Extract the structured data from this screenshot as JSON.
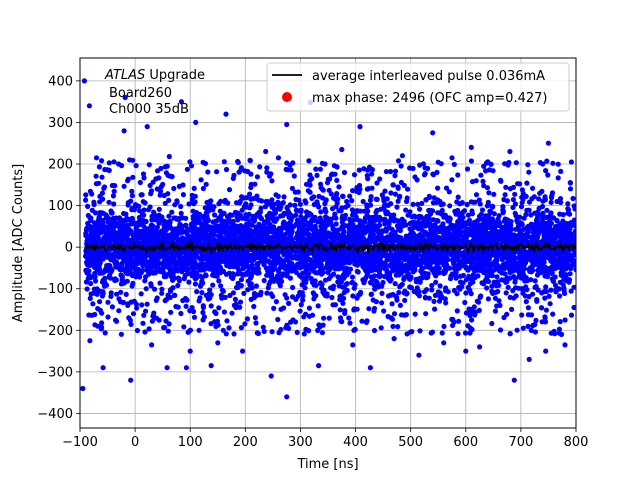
{
  "chart_data": {
    "type": "scatter",
    "xlabel": "Time [ns]",
    "ylabel": "Amplitude [ADC Counts]",
    "xlim": [
      -100,
      800
    ],
    "ylim": [
      -435,
      455
    ],
    "xticks": [
      -100,
      0,
      100,
      200,
      300,
      400,
      500,
      600,
      700,
      800
    ],
    "yticks": [
      -400,
      -300,
      -200,
      -100,
      0,
      100,
      200,
      300,
      400
    ],
    "xtick_labels": [
      "−100",
      "0",
      "100",
      "200",
      "300",
      "400",
      "500",
      "600",
      "700",
      "800"
    ],
    "ytick_labels": [
      "−400",
      "−300",
      "−200",
      "−100",
      "0",
      "100",
      "200",
      "300",
      "400"
    ],
    "grid": true,
    "legend_position": "top-right",
    "annotation": {
      "italic": "ATLAS",
      "line1_rest": " Upgrade",
      "line2": "Board260",
      "line3": "Ch000 35dB"
    },
    "series": [
      {
        "name": "average interleaved pulse 0.036mA",
        "kind": "line",
        "color": "#000000",
        "x_range": [
          -90,
          800
        ],
        "mean": 0,
        "jitter": 5
      },
      {
        "name": "max phase: 2496 (OFC amp=0.427)",
        "kind": "scatter",
        "color": "#0000ff",
        "x_range": [
          -90,
          800
        ],
        "dense_band": [
          -110,
          110
        ],
        "outlier_points": [
          [
            -92,
            400
          ],
          [
            -83,
            340
          ],
          [
            -20,
            280
          ],
          [
            -18,
            360
          ],
          [
            -10,
            210
          ],
          [
            22,
            290
          ],
          [
            84,
            350
          ],
          [
            110,
            300
          ],
          [
            165,
            320
          ],
          [
            237,
            230
          ],
          [
            275,
            295
          ],
          [
            318,
            348
          ],
          [
            408,
            290
          ],
          [
            375,
            235
          ],
          [
            540,
            275
          ],
          [
            750,
            250
          ],
          [
            610,
            240
          ],
          [
            680,
            230
          ],
          [
            -70,
            215
          ],
          [
            -30,
            200
          ],
          [
            62,
            218
          ],
          [
            260,
            215
          ],
          [
            485,
            220
          ],
          [
            575,
            215
          ],
          [
            640,
            205
          ],
          [
            -82,
            -225
          ],
          [
            -95,
            -340
          ],
          [
            -58,
            -290
          ],
          [
            -8,
            -320
          ],
          [
            58,
            -290
          ],
          [
            93,
            -290
          ],
          [
            138,
            -285
          ],
          [
            195,
            -250
          ],
          [
            247,
            -310
          ],
          [
            275,
            -360
          ],
          [
            333,
            -285
          ],
          [
            427,
            -290
          ],
          [
            470,
            -220
          ],
          [
            515,
            -260
          ],
          [
            560,
            -230
          ],
          [
            625,
            -240
          ],
          [
            688,
            -320
          ],
          [
            745,
            -250
          ],
          [
            780,
            -235
          ],
          [
            100,
            -250
          ],
          [
            30,
            -235
          ],
          [
            150,
            -230
          ],
          [
            395,
            -235
          ],
          [
            600,
            -250
          ],
          [
            715,
            -270
          ]
        ]
      }
    ]
  }
}
